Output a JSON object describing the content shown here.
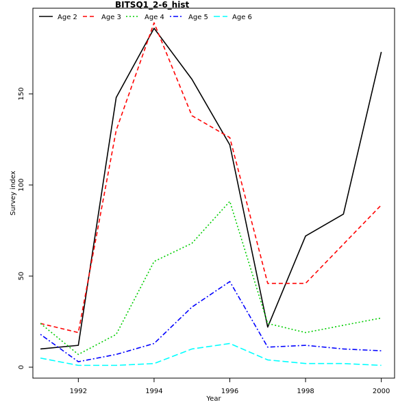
{
  "chart_data": {
    "type": "line",
    "title": "BITSQ1_2-6_hist",
    "xlabel": "Year",
    "ylabel": "Survey index",
    "xlim": [
      1990.8,
      2000.35
    ],
    "ylim": [
      -6,
      197
    ],
    "x_ticks": [
      1992,
      1994,
      1996,
      1998,
      2000
    ],
    "y_ticks": [
      0,
      50,
      100,
      150
    ],
    "grid": false,
    "legend_position": "top-left",
    "x": [
      1991,
      1992,
      1993,
      1994,
      1995,
      1996,
      1997,
      1998,
      1999,
      2000
    ],
    "series": [
      {
        "name": "Age 2",
        "color": "#000000",
        "dash": "solid",
        "values": [
          10,
          12,
          148,
          186,
          158,
          122,
          22,
          72,
          84,
          173
        ]
      },
      {
        "name": "Age 3",
        "color": "#ff0000",
        "dash": "dashed",
        "values": [
          24,
          19,
          130,
          189,
          138,
          126,
          46,
          46,
          null,
          89
        ]
      },
      {
        "name": "Age 4",
        "color": "#00cd00",
        "dash": "dotted",
        "values": [
          24,
          7,
          18,
          58,
          68,
          91,
          24,
          19,
          null,
          27
        ]
      },
      {
        "name": "Age 5",
        "color": "#0000ff",
        "dash": "dotdash",
        "values": [
          18,
          3,
          7,
          13,
          33,
          47,
          11,
          12,
          10,
          9
        ]
      },
      {
        "name": "Age 6",
        "color": "#00ffff",
        "dash": "longdash",
        "values": [
          5,
          1,
          1,
          2,
          10,
          13,
          4,
          2,
          2,
          1
        ]
      }
    ]
  }
}
